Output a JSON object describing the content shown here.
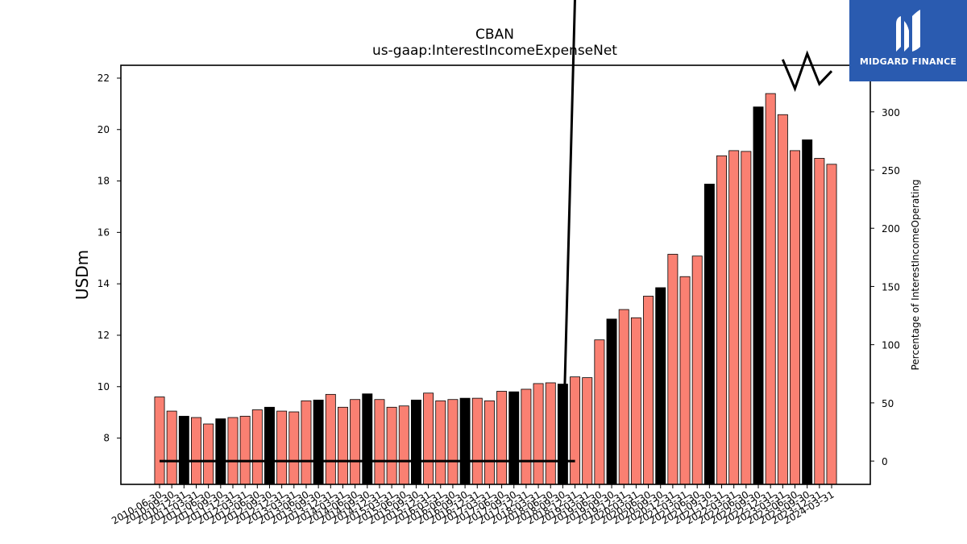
{
  "chart_data": {
    "type": "bar",
    "title": "CBAN",
    "subtitle": "us-gaap:InterestIncomeExpenseNet",
    "ylabel": "USDm",
    "y2label": "Percentage of InterestIncomeOperating",
    "ylim": [
      6.2,
      22.5
    ],
    "y2lim": [
      -20,
      340
    ],
    "yticks": [
      8,
      10,
      12,
      14,
      16,
      18,
      20,
      22
    ],
    "y2ticks": [
      0,
      50,
      100,
      150,
      200,
      250,
      300
    ],
    "categories": [
      "2010-06-30",
      "2010-09-30",
      "2010-12-31",
      "2011-03-31",
      "2011-06-30",
      "2011-09-30",
      "2011-12-31",
      "2012-03-31",
      "2012-06-30",
      "2012-09-30",
      "2012-12-31",
      "2013-03-31",
      "2013-06-30",
      "2013-09-30",
      "2013-12-31",
      "2014-03-31",
      "2014-06-30",
      "2014-09-30",
      "2014-12-31",
      "2015-03-31",
      "2015-06-30",
      "2015-09-30",
      "2015-12-31",
      "2016-03-31",
      "2016-06-30",
      "2016-09-30",
      "2016-12-31",
      "2017-03-31",
      "2017-06-30",
      "2017-09-30",
      "2017-12-31",
      "2018-03-31",
      "2018-06-30",
      "2018-09-30",
      "2018-12-31",
      "2019-03-31",
      "2019-06-30",
      "2019-09-30",
      "2019-12-31",
      "2020-03-31",
      "2020-06-30",
      "2020-09-30",
      "2020-12-31",
      "2021-03-31",
      "2021-06-30",
      "2021-09-30",
      "2021-12-31",
      "2022-03-31",
      "2022-06-30",
      "2022-09-30",
      "2022-12-31",
      "2023-03-31",
      "2023-06-30",
      "2023-09-30",
      "2023-12-31",
      "2024-03-31"
    ],
    "values": [
      9.6,
      9.05,
      8.85,
      8.8,
      8.55,
      8.75,
      8.8,
      8.85,
      9.1,
      9.2,
      9.05,
      9.02,
      9.45,
      9.48,
      9.7,
      9.2,
      9.5,
      9.72,
      9.5,
      9.2,
      9.25,
      9.48,
      9.75,
      9.45,
      9.5,
      9.55,
      9.55,
      9.45,
      9.82,
      9.8,
      9.9,
      10.12,
      10.15,
      10.1,
      10.38,
      10.35,
      11.82,
      12.63,
      13.0,
      12.68,
      13.52,
      13.85,
      15.15,
      14.28,
      15.08,
      17.88,
      18.98,
      19.18,
      19.15,
      20.88,
      21.4,
      20.58,
      19.18,
      19.6,
      18.88,
      18.65
    ],
    "highlighted": [
      false,
      false,
      true,
      false,
      false,
      true,
      false,
      false,
      false,
      true,
      false,
      false,
      false,
      true,
      false,
      false,
      false,
      true,
      false,
      false,
      false,
      true,
      false,
      false,
      false,
      true,
      false,
      false,
      false,
      true,
      false,
      false,
      false,
      true,
      false,
      false,
      false,
      true,
      false,
      false,
      false,
      true,
      false,
      false,
      false,
      true,
      false,
      false,
      false,
      true,
      false,
      false,
      false,
      true,
      false,
      false
    ],
    "ratio_line": [
      0,
      0,
      0,
      0,
      0,
      0,
      0,
      0,
      0,
      0,
      0,
      0,
      0,
      0,
      0,
      0,
      0,
      0,
      0,
      0,
      0,
      0,
      0,
      0,
      0,
      0,
      0,
      0,
      0,
      0,
      0,
      0,
      0,
      0,
      0,
      null,
      null,
      null,
      null,
      null,
      null,
      null,
      null,
      null,
      null,
      null,
      null,
      null,
      null,
      null,
      null,
      null,
      null,
      null,
      null,
      null
    ],
    "ratio_line_upper": [
      null,
      null,
      null,
      null,
      null,
      null,
      null,
      null,
      null,
      null,
      null,
      null,
      null,
      null,
      null,
      null,
      null,
      null,
      null,
      null,
      null,
      null,
      null,
      null,
      null,
      null,
      null,
      null,
      null,
      null,
      null,
      null,
      null,
      0,
      400,
      null,
      null,
      null,
      null,
      null,
      null,
      null,
      null,
      null,
      null,
      null,
      null,
      null,
      null,
      null,
      null,
      345,
      320,
      350,
      324,
      335
    ],
    "colors": {
      "bar": "#fa8072",
      "highlight": "#000000",
      "line": "#000000"
    },
    "grid": false,
    "legend": "none"
  },
  "logo": {
    "name": "MIDGARD FINANCE",
    "icon": "midgard-logo-icon"
  }
}
